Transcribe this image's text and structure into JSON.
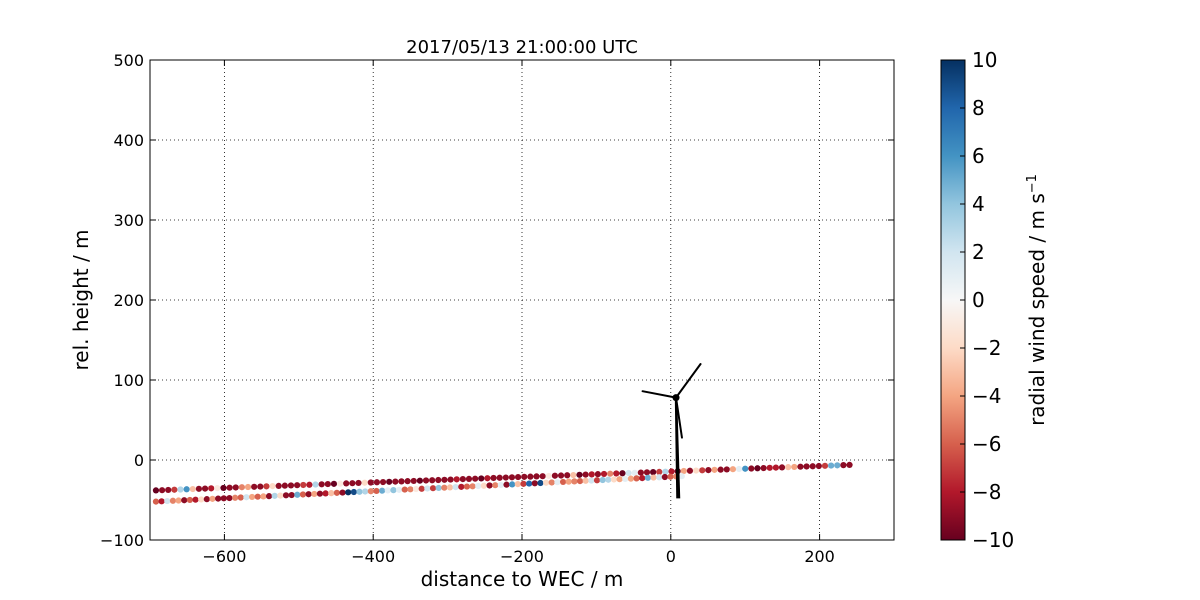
{
  "chart_data": {
    "type": "scatter",
    "title": "2017/05/13 21:00:00 UTC",
    "xlabel": "distance to WEC / m",
    "ylabel": "rel. height / m",
    "xlim": [
      -700,
      300
    ],
    "ylim": [
      -100,
      500
    ],
    "xticks": [
      -600,
      -400,
      -200,
      0,
      200
    ],
    "yticks": [
      -100,
      0,
      100,
      200,
      300,
      400,
      500
    ],
    "xtick_labels": [
      "−600",
      "−400",
      "−200",
      "0",
      "200"
    ],
    "ytick_labels": [
      "−100",
      "0",
      "100",
      "200",
      "300",
      "400",
      "500"
    ],
    "grid": true,
    "colorbar": {
      "label": "radial wind speed / m s",
      "label_superscript": "−1",
      "range": [
        -10,
        10
      ],
      "ticks": [
        -10,
        -8,
        -6,
        -4,
        -2,
        0,
        2,
        4,
        6,
        8,
        10
      ],
      "tick_labels": [
        "−10",
        "−8",
        "−6",
        "−4",
        "−2",
        "0",
        "2",
        "4",
        "6",
        "8",
        "10"
      ],
      "colormap": [
        "#67001f",
        "#b2182b",
        "#d6604d",
        "#f4a582",
        "#fddbc7",
        "#f7f7f7",
        "#d1e5f0",
        "#92c5de",
        "#4393c3",
        "#2166ac",
        "#053061"
      ]
    },
    "series": [
      {
        "x_start": -692,
        "y_start": -38,
        "x_end": 244,
        "y_end": -6,
        "x_step": 8.25,
        "speeds": [
          -10,
          -9,
          -9,
          -7,
          3,
          6,
          -3,
          -9,
          -9,
          -8,
          -1,
          -10,
          -9,
          -9,
          -5,
          -4,
          -9,
          -9,
          -7,
          -2,
          -9,
          -9,
          -9,
          -9,
          -7,
          -8,
          3,
          -9,
          -9,
          -10,
          -1,
          -9,
          -9,
          -9,
          -2,
          -9,
          -9,
          -9,
          -10,
          -9,
          -9,
          -9,
          -9,
          -10,
          -9,
          -9,
          -9,
          -9,
          -9,
          -8,
          -9,
          -9,
          -9,
          -10,
          -8,
          -9,
          -9,
          -9,
          -9,
          -9,
          -9,
          -9,
          -9,
          -9,
          -1,
          -9,
          -9,
          -9,
          -3,
          -10,
          -9,
          -8,
          -9,
          -8,
          -5,
          -8,
          -10,
          2,
          1,
          -9,
          -9,
          -10,
          -7,
          3,
          -8,
          -10,
          -4,
          -9,
          -2,
          -7,
          -9,
          -4,
          -9,
          -9,
          -4,
          1,
          6,
          -9,
          -10,
          -9,
          -8,
          -8,
          -9,
          -3,
          -4,
          -9,
          -9,
          -9,
          -9,
          -7,
          5,
          5,
          -9,
          -9,
          -9,
          -9,
          -9,
          -5
        ]
      },
      {
        "x_start": -692,
        "y_start": -52,
        "x_end": 20,
        "y_end": -20,
        "x_step": 7.6,
        "speeds": [
          -6,
          -8,
          2,
          -5,
          -4,
          -9,
          -6,
          -8,
          -2,
          -9,
          -4,
          -9,
          -9,
          -9,
          -5,
          -6,
          2,
          -4,
          -6,
          -4,
          -9,
          3,
          -2,
          -9,
          -9,
          5,
          -6,
          -9,
          -4,
          -9,
          -8,
          -3,
          -6,
          -9,
          10,
          9,
          4,
          3,
          -5,
          -6,
          5,
          1,
          4,
          1,
          -6,
          -5,
          -1,
          -7,
          2,
          -7,
          4,
          -5,
          -3,
          2,
          -8,
          -6,
          -5,
          1,
          -2,
          -9,
          -5,
          1,
          -9,
          6,
          -3,
          -7,
          8,
          -9,
          9,
          -2,
          -5,
          1,
          -6,
          -4,
          -5,
          -6,
          -3,
          2,
          -7,
          4,
          3,
          -2,
          -4,
          1,
          -4,
          -6,
          -8,
          5,
          -3,
          2,
          -9,
          -6,
          -5,
          1
        ]
      }
    ],
    "turbine": {
      "tower_base": [
        10,
        -48
      ],
      "hub": [
        7,
        78
      ],
      "blade_tips": [
        [
          -38,
          86
        ],
        [
          40,
          120
        ],
        [
          15,
          28
        ]
      ]
    }
  }
}
